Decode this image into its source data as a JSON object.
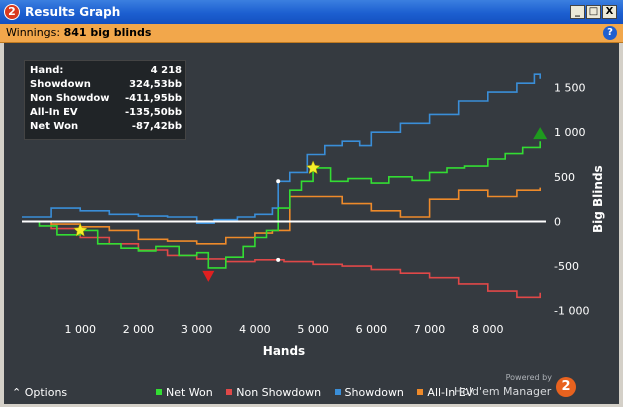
{
  "window": {
    "app_badge": "2",
    "title": "Results Graph",
    "controls": [
      "_",
      "□",
      "X"
    ]
  },
  "winnings": {
    "label": "Winnings:",
    "value": "841 big blinds"
  },
  "help_glyph": "?",
  "stats": [
    {
      "label": "Hand:",
      "value": "4 218"
    },
    {
      "label": "Showdown",
      "value": "324,53bb"
    },
    {
      "label": "Non Showdown",
      "value": "-411,95bb"
    },
    {
      "label": "All-In EV",
      "value": "-135,50bb"
    },
    {
      "label": "Net Won",
      "value": "-87,42bb"
    }
  ],
  "footer": {
    "options_label": "Options",
    "powered_by": "Powered by",
    "brand": "Hold'em Manager",
    "brand_badge": "2"
  },
  "colors": {
    "net_won": "#33dd33",
    "non_showdown": "#e04848",
    "showdown": "#3a8ed8",
    "allin_ev": "#ee8a2a",
    "background": "#353a40",
    "winnings_bar": "#f2a74b"
  },
  "chart_data": {
    "type": "line",
    "xlabel": "Hands",
    "ylabel": "Big Blinds",
    "xlim": [
      0,
      9000
    ],
    "ylim": [
      -1250,
      2000
    ],
    "xticks": [
      1000,
      2000,
      3000,
      4000,
      5000,
      6000,
      7000,
      8000
    ],
    "xtick_labels": [
      "1 000",
      "2 000",
      "3 000",
      "4 000",
      "5 000",
      "6 000",
      "7 000",
      "8 000"
    ],
    "yticks": [
      -1000,
      -500,
      0,
      500,
      1000,
      1500
    ],
    "ytick_labels": [
      "-1 000",
      "-500",
      "0",
      "500",
      "1 000",
      "1 500"
    ],
    "grid": false,
    "legend_position": "bottom",
    "series": [
      {
        "name": "Net Won",
        "color": "#33dd33",
        "x": [
          0,
          300,
          600,
          1000,
          1300,
          1700,
          2000,
          2300,
          2700,
          3000,
          3200,
          3500,
          3800,
          4000,
          4200,
          4400,
          4600,
          4800,
          5000,
          5300,
          5600,
          6000,
          6300,
          6700,
          7000,
          7300,
          7600,
          8000,
          8300,
          8600,
          8900
        ],
        "values": [
          0,
          -50,
          -150,
          -100,
          -250,
          -300,
          -330,
          -280,
          -380,
          -350,
          -520,
          -400,
          -280,
          -180,
          -100,
          150,
          350,
          450,
          600,
          450,
          480,
          430,
          500,
          460,
          550,
          600,
          620,
          700,
          760,
          830,
          900
        ]
      },
      {
        "name": "Non Showdown",
        "color": "#e04848",
        "x": [
          0,
          500,
          1000,
          1500,
          2000,
          2500,
          3000,
          3500,
          4000,
          4500,
          5000,
          5500,
          6000,
          6500,
          7000,
          7500,
          8000,
          8500,
          8900
        ],
        "values": [
          0,
          -80,
          -180,
          -250,
          -320,
          -380,
          -420,
          -450,
          -430,
          -450,
          -480,
          -500,
          -540,
          -580,
          -630,
          -700,
          -780,
          -850,
          -800
        ]
      },
      {
        "name": "Showdown",
        "color": "#3a8ed8",
        "x": [
          0,
          500,
          1000,
          1500,
          2000,
          2500,
          3000,
          3300,
          3700,
          4000,
          4300,
          4400,
          4600,
          4900,
          5200,
          5500,
          5800,
          6000,
          6500,
          7000,
          7500,
          8000,
          8500,
          8800,
          8900
        ],
        "values": [
          50,
          150,
          120,
          80,
          60,
          50,
          -20,
          20,
          50,
          80,
          150,
          450,
          550,
          750,
          850,
          900,
          850,
          1000,
          1100,
          1200,
          1350,
          1450,
          1550,
          1650,
          1600
        ]
      },
      {
        "name": "All-In EV",
        "color": "#ee8a2a",
        "x": [
          0,
          500,
          1000,
          1500,
          2000,
          2500,
          3000,
          3500,
          4000,
          4300,
          4600,
          5000,
          5500,
          6000,
          6500,
          7000,
          7500,
          8000,
          8500,
          8900
        ],
        "values": [
          0,
          -30,
          -60,
          -100,
          -200,
          -220,
          -250,
          -180,
          -130,
          -100,
          280,
          280,
          200,
          120,
          50,
          250,
          350,
          280,
          350,
          380
        ]
      }
    ]
  }
}
